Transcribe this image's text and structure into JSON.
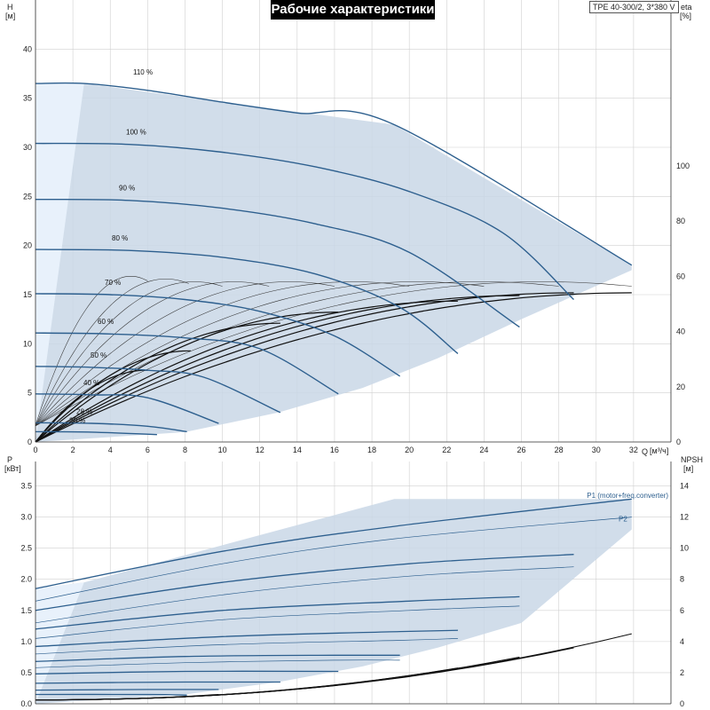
{
  "title": "Рабочие характеристики",
  "model": "TPE 40-300/2, 3*380 V",
  "chart_data": [
    {
      "type": "line",
      "name": "head-efficiency",
      "xlabel": "Q",
      "xunit": "[м³/ч]",
      "ylabel": "H",
      "yunit": "[м]",
      "y2label": "eta",
      "y2unit": "[%]",
      "xlim": [
        0,
        34
      ],
      "ylim": [
        0,
        45
      ],
      "y2lim": [
        0,
        160
      ],
      "xticks": [
        "0",
        "2",
        "4",
        "6",
        "8",
        "10",
        "12",
        "14",
        "16",
        "18",
        "20",
        "22",
        "24",
        "26",
        "28",
        "30",
        "32"
      ],
      "yticks": [
        "0",
        "5",
        "10",
        "15",
        "20",
        "25",
        "30",
        "35",
        "40"
      ],
      "y2ticks": [
        "0",
        "20",
        "40",
        "60",
        "80",
        "100"
      ],
      "grid": true,
      "operating_envelope": {
        "top": [
          [
            0,
            36.5
          ],
          [
            2.6,
            36.5
          ],
          [
            19.2,
            32.3
          ],
          [
            31.9,
            18.0
          ]
        ],
        "bottom": [
          [
            0,
            0
          ],
          [
            8.0,
            1.0
          ],
          [
            13.0,
            3.0
          ],
          [
            17.5,
            5.5
          ],
          [
            21.5,
            8.5
          ],
          [
            26.0,
            12.5
          ],
          [
            31.9,
            17.5
          ]
        ]
      },
      "speed_curves": [
        {
          "label": "110 %",
          "x": [
            0,
            2.6,
            6,
            10,
            14,
            19.2,
            31.9
          ],
          "y": [
            36.5,
            36.5,
            35.8,
            34.6,
            33.5,
            32.3,
            18.0
          ]
        },
        {
          "label": "100 %",
          "x": [
            0,
            5,
            10,
            15,
            20,
            25,
            28.8
          ],
          "y": [
            30.4,
            30.3,
            29.5,
            28.0,
            25.5,
            21.3,
            14.5
          ]
        },
        {
          "label": "90 %",
          "x": [
            0,
            5,
            10,
            15,
            20,
            25.9
          ],
          "y": [
            24.7,
            24.6,
            23.8,
            22.2,
            19.3,
            11.7
          ]
        },
        {
          "label": "80 %",
          "x": [
            0,
            5,
            10,
            15,
            19.5,
            22.6
          ],
          "y": [
            19.6,
            19.5,
            18.8,
            17.1,
            13.7,
            9.0
          ]
        },
        {
          "label": "70 %",
          "x": [
            0,
            4,
            8,
            12,
            16,
            19.5
          ],
          "y": [
            15.1,
            15.0,
            14.5,
            13.3,
            10.8,
            6.7
          ]
        },
        {
          "label": "60 %",
          "x": [
            0,
            4,
            8,
            12,
            16.2
          ],
          "y": [
            11.1,
            11.0,
            10.6,
            9.5,
            4.9
          ]
        },
        {
          "label": "50 %",
          "x": [
            0,
            3,
            6,
            9,
            13.1
          ],
          "y": [
            7.7,
            7.6,
            7.3,
            6.6,
            3.0
          ]
        },
        {
          "label": "40 %",
          "x": [
            0,
            3,
            6,
            9.8
          ],
          "y": [
            4.9,
            4.8,
            4.5,
            1.9
          ]
        },
        {
          "label": "28 %",
          "x": [
            0,
            3,
            6,
            8.1
          ],
          "y": [
            1.95,
            1.9,
            1.6,
            1.05
          ]
        },
        {
          "label": "20 %",
          "x": [
            0,
            3,
            6.5
          ],
          "y": [
            1.05,
            1.0,
            0.75
          ]
        }
      ],
      "efficiency_curves_max": [
        {
          "qmax": 6.0,
          "peak": 60
        },
        {
          "qmax": 8.2,
          "peak": 59
        },
        {
          "qmax": 10.0,
          "peak": 58
        },
        {
          "qmax": 12.5,
          "peak": 58
        },
        {
          "qmax": 16.0,
          "peak": 58
        },
        {
          "qmax": 20.0,
          "peak": 58
        },
        {
          "qmax": 24.0,
          "peak": 58
        },
        {
          "qmax": 28.0,
          "peak": 58
        },
        {
          "qmax": 31.9,
          "peak": 58
        }
      ],
      "efficiency_curves_bold": [
        {
          "qmax": 6.0,
          "peak": 26
        },
        {
          "qmax": 8.3,
          "peak": 33
        },
        {
          "qmax": 13.1,
          "peak": 43
        },
        {
          "qmax": 16.2,
          "peak": 47
        },
        {
          "qmax": 22.6,
          "peak": 51
        },
        {
          "qmax": 25.9,
          "peak": 53
        },
        {
          "qmax": 28.8,
          "peak": 54
        },
        {
          "qmax": 31.9,
          "peak": 54
        }
      ]
    },
    {
      "type": "line",
      "name": "power-npsh",
      "xlabel": "",
      "ylabel": "P",
      "yunit": "[кВт]",
      "y2label": "NPSH",
      "y2unit": "[м]",
      "xlim": [
        0,
        34
      ],
      "ylim": [
        0,
        3.75
      ],
      "y2lim": [
        0,
        15
      ],
      "yticks": [
        "0.0",
        "0.5",
        "1.0",
        "1.5",
        "2.0",
        "2.5",
        "3.0",
        "3.5"
      ],
      "y2ticks": [
        "0",
        "2",
        "4",
        "6",
        "8",
        "10",
        "12",
        "14"
      ],
      "grid": true,
      "series_labels": [
        "P1 (motor+freq.converter)",
        "P2"
      ],
      "operating_envelope": {
        "top": [
          [
            0,
            1.85
          ],
          [
            2.6,
            1.95
          ],
          [
            19.2,
            3.29
          ],
          [
            31.9,
            3.29
          ]
        ],
        "bottom": [
          [
            0,
            0
          ],
          [
            8,
            0.15
          ],
          [
            13,
            0.35
          ],
          [
            17.5,
            0.6
          ],
          [
            21.5,
            0.9
          ],
          [
            26,
            1.3
          ],
          [
            31.9,
            2.8
          ]
        ]
      },
      "power_curves_p1": [
        {
          "x": [
            0,
            10,
            19.2,
            31.9
          ],
          "y": [
            1.85,
            2.45,
            2.85,
            3.29
          ]
        },
        {
          "x": [
            0,
            10,
            20,
            28.8
          ],
          "y": [
            1.5,
            1.95,
            2.25,
            2.4
          ]
        },
        {
          "x": [
            0,
            10,
            20,
            25.9
          ],
          "y": [
            1.2,
            1.5,
            1.65,
            1.72
          ]
        },
        {
          "x": [
            0,
            10,
            19.5,
            22.6
          ],
          "y": [
            0.92,
            1.08,
            1.16,
            1.18
          ]
        },
        {
          "x": [
            0,
            8,
            16,
            19.5
          ],
          "y": [
            0.68,
            0.76,
            0.78,
            0.78
          ]
        },
        {
          "x": [
            0,
            8,
            16.2
          ],
          "y": [
            0.48,
            0.52,
            0.52
          ]
        },
        {
          "x": [
            0,
            8,
            13.1
          ],
          "y": [
            0.33,
            0.35,
            0.35
          ]
        },
        {
          "x": [
            0,
            6,
            9.8
          ],
          "y": [
            0.22,
            0.23,
            0.23
          ]
        },
        {
          "x": [
            0,
            6,
            8.1
          ],
          "y": [
            0.15,
            0.15,
            0.14
          ]
        }
      ],
      "power_curves_p2": [
        {
          "x": [
            0,
            10,
            19.2,
            31.9
          ],
          "y": [
            1.65,
            2.25,
            2.65,
            3.0
          ]
        },
        {
          "x": [
            0,
            10,
            20,
            28.8
          ],
          "y": [
            1.3,
            1.75,
            2.05,
            2.2
          ]
        },
        {
          "x": [
            0,
            10,
            20,
            25.9
          ],
          "y": [
            1.05,
            1.35,
            1.5,
            1.57
          ]
        },
        {
          "x": [
            0,
            10,
            19.5,
            22.6
          ],
          "y": [
            0.8,
            0.95,
            1.02,
            1.05
          ]
        },
        {
          "x": [
            0,
            8,
            16,
            19.5
          ],
          "y": [
            0.58,
            0.66,
            0.7,
            0.7
          ]
        }
      ],
      "npsh_curves": [
        {
          "qmax": 31.9,
          "end": 4.5
        },
        {
          "qmax": 28.8,
          "end": 3.6
        },
        {
          "qmax": 25.9,
          "end": 3.0
        },
        {
          "qmax": 22.6,
          "end": 2.3
        },
        {
          "qmax": 19.5,
          "end": 1.7
        },
        {
          "qmax": 16.2,
          "end": 1.2
        },
        {
          "qmax": 13.1,
          "end": 0.85
        },
        {
          "qmax": 9.8,
          "end": 0.6
        }
      ]
    }
  ],
  "colors": {
    "envelope_fill": "#c9d7e6",
    "envelope_light": "#e8f1fb",
    "curve_blue": "#2d5f8e",
    "curve_black": "#111111",
    "grid": "#d0d0d0"
  }
}
